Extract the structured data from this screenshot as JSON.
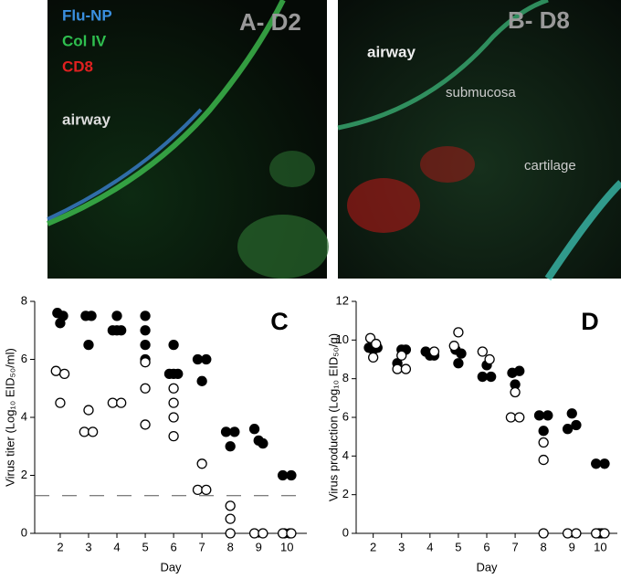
{
  "panels": [
    {
      "title": "A- D2",
      "labels": [
        "Flu-NP",
        "Col IV",
        "CD8",
        "airway"
      ]
    },
    {
      "title": "B- D8",
      "labels": [
        "airway",
        "submucosa",
        "cartilage"
      ]
    }
  ],
  "chart_data": [
    {
      "type": "scatter",
      "label": "C",
      "xlabel": "Day",
      "ylabel": "Virus titer (Log₁₀ EID₅₀/ml)",
      "xlim": [
        1.1,
        10.7
      ],
      "xticks": [
        2,
        3,
        4,
        5,
        6,
        7,
        8,
        9,
        10
      ],
      "ylim": [
        0,
        8
      ],
      "yticks": [
        0,
        2,
        4,
        6,
        8
      ],
      "reference_line": 1.3,
      "series": [
        {
          "color": "#000000",
          "marker": "filled",
          "x": [
            1.9,
            2.1,
            2.0,
            2.9,
            3.1,
            3.0,
            3.85,
            4.0,
            4.15,
            4.0,
            5.0,
            5.0,
            5.0,
            5.0,
            6.0,
            5.85,
            6.0,
            6.15,
            6.85,
            7.15,
            7.0,
            7.85,
            8.15,
            8.0,
            8.85,
            9.15,
            9.0,
            9.85,
            10.15,
            9.9,
            10.1
          ],
          "values": [
            7.6,
            7.5,
            7.25,
            7.5,
            7.5,
            6.5,
            7.0,
            7.0,
            7.0,
            7.5,
            7.5,
            7.0,
            6.5,
            6.0,
            6.5,
            5.5,
            5.5,
            5.5,
            6.0,
            6.0,
            5.25,
            3.5,
            3.5,
            3.0,
            3.6,
            3.1,
            3.2,
            2.0,
            2.0,
            0,
            0
          ]
        },
        {
          "color": "#000000",
          "marker": "open",
          "x": [
            1.85,
            2.15,
            2.0,
            3.0,
            2.85,
            3.15,
            3.85,
            4.15,
            5.0,
            5.0,
            5.0,
            6.0,
            6.0,
            6.0,
            6.0,
            7.0,
            6.85,
            7.15,
            8.0,
            8.0,
            8.0,
            8.85,
            9.15,
            9.85,
            10.15
          ],
          "values": [
            5.6,
            5.5,
            4.5,
            4.25,
            3.5,
            3.5,
            4.5,
            4.5,
            5.9,
            5.0,
            3.75,
            5.0,
            4.5,
            4.0,
            3.35,
            2.4,
            1.5,
            1.5,
            0.95,
            0.5,
            0,
            0,
            0,
            0,
            0
          ]
        }
      ]
    },
    {
      "type": "scatter",
      "label": "D",
      "xlabel": "Day",
      "ylabel": "Virus production (Log₁₀ EID₅₀/g)",
      "xlim": [
        1.4,
        10.6
      ],
      "xticks": [
        2,
        3,
        4,
        5,
        6,
        7,
        8,
        9,
        10
      ],
      "ylim": [
        0,
        12
      ],
      "yticks": [
        0,
        2,
        4,
        6,
        8,
        10,
        12
      ],
      "series": [
        {
          "color": "#000000",
          "marker": "filled",
          "x": [
            1.85,
            2.15,
            2.0,
            2.85,
            3.15,
            3.0,
            3.85,
            4.0,
            4.15,
            4.9,
            5.1,
            5.0,
            6.0,
            5.85,
            6.15,
            7.15,
            6.9,
            7.0,
            7.85,
            8.15,
            8.0,
            9.0,
            9.15,
            8.85,
            10.15,
            9.85,
            9.95,
            10.05
          ],
          "values": [
            9.6,
            9.6,
            9.5,
            8.8,
            9.5,
            9.5,
            9.4,
            9.2,
            9.2,
            9.5,
            9.3,
            8.8,
            8.7,
            8.1,
            8.1,
            8.4,
            8.3,
            7.7,
            6.1,
            6.1,
            5.3,
            6.2,
            5.6,
            5.4,
            3.6,
            3.6,
            0,
            0
          ]
        },
        {
          "color": "#000000",
          "marker": "open",
          "x": [
            1.9,
            2.1,
            2.0,
            3.0,
            2.85,
            3.15,
            4.15,
            5.0,
            4.85,
            5.85,
            6.1,
            7.0,
            6.85,
            7.15,
            8.0,
            8.0,
            8.0,
            8.85,
            9.15,
            9.85,
            10.15
          ],
          "values": [
            10.1,
            9.8,
            9.1,
            9.2,
            8.5,
            8.5,
            9.4,
            10.4,
            9.7,
            9.4,
            9.0,
            7.3,
            6.0,
            6.0,
            4.7,
            3.8,
            0,
            0,
            0,
            0,
            0
          ]
        }
      ]
    }
  ]
}
